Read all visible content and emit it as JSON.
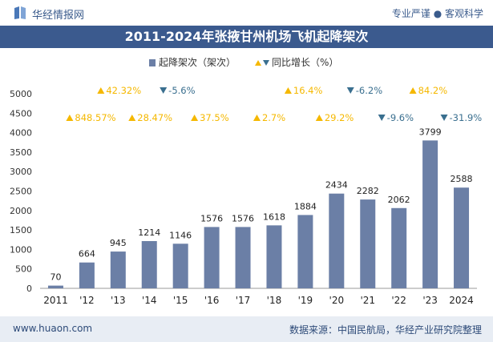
{
  "header": {
    "brand": "华经情报网",
    "tagline": "专业严谨 ● 客观科学"
  },
  "footer": {
    "website": "www.huaon.com",
    "source": "数据来源：中国民航局，华经产业研究院整理"
  },
  "colors": {
    "bar": "#6b7fa6",
    "growth_positive": "#f5b800",
    "growth_negative": "#3a6f8f",
    "title_bg": "#3b5a8e"
  },
  "chart_data": {
    "type": "bar",
    "title": "2011-2024年张掖甘州机场飞机起降架次",
    "categories": [
      "2011",
      "'12",
      "'13",
      "'14",
      "'15",
      "'16",
      "'17",
      "'18",
      "'19",
      "'20",
      "'21",
      "'22",
      "'23",
      "2024"
    ],
    "series": [
      {
        "name": "起降架次（架次）",
        "values": [
          70,
          664,
          945,
          1214,
          1146,
          1576,
          1576,
          1618,
          1884,
          2434,
          2282,
          2062,
          3799,
          2588
        ]
      },
      {
        "name": "同比增长（%）",
        "values": [
          null,
          848.57,
          42.32,
          28.47,
          -5.6,
          37.5,
          0,
          2.7,
          16.4,
          29.2,
          -6.2,
          -9.6,
          84.2,
          -31.9
        ],
        "labels": [
          "",
          "848.57%",
          "42.32%",
          "28.47%",
          "-5.6%",
          "37.5%",
          "",
          "2.7%",
          "16.4%",
          "29.2%",
          "-6.2%",
          "-9.6%",
          "84.2%",
          "-31.9%"
        ],
        "rows": [
          0,
          1,
          0,
          1,
          0,
          1,
          0,
          1,
          0,
          1,
          0,
          1,
          0,
          1
        ]
      }
    ],
    "yticks": [
      "0",
      "500",
      "1000",
      "1500",
      "2000",
      "2500",
      "3000",
      "3500",
      "4000",
      "4500",
      "5000"
    ],
    "ylim": [
      0,
      5000
    ],
    "grid": false,
    "legend": "top-center"
  }
}
